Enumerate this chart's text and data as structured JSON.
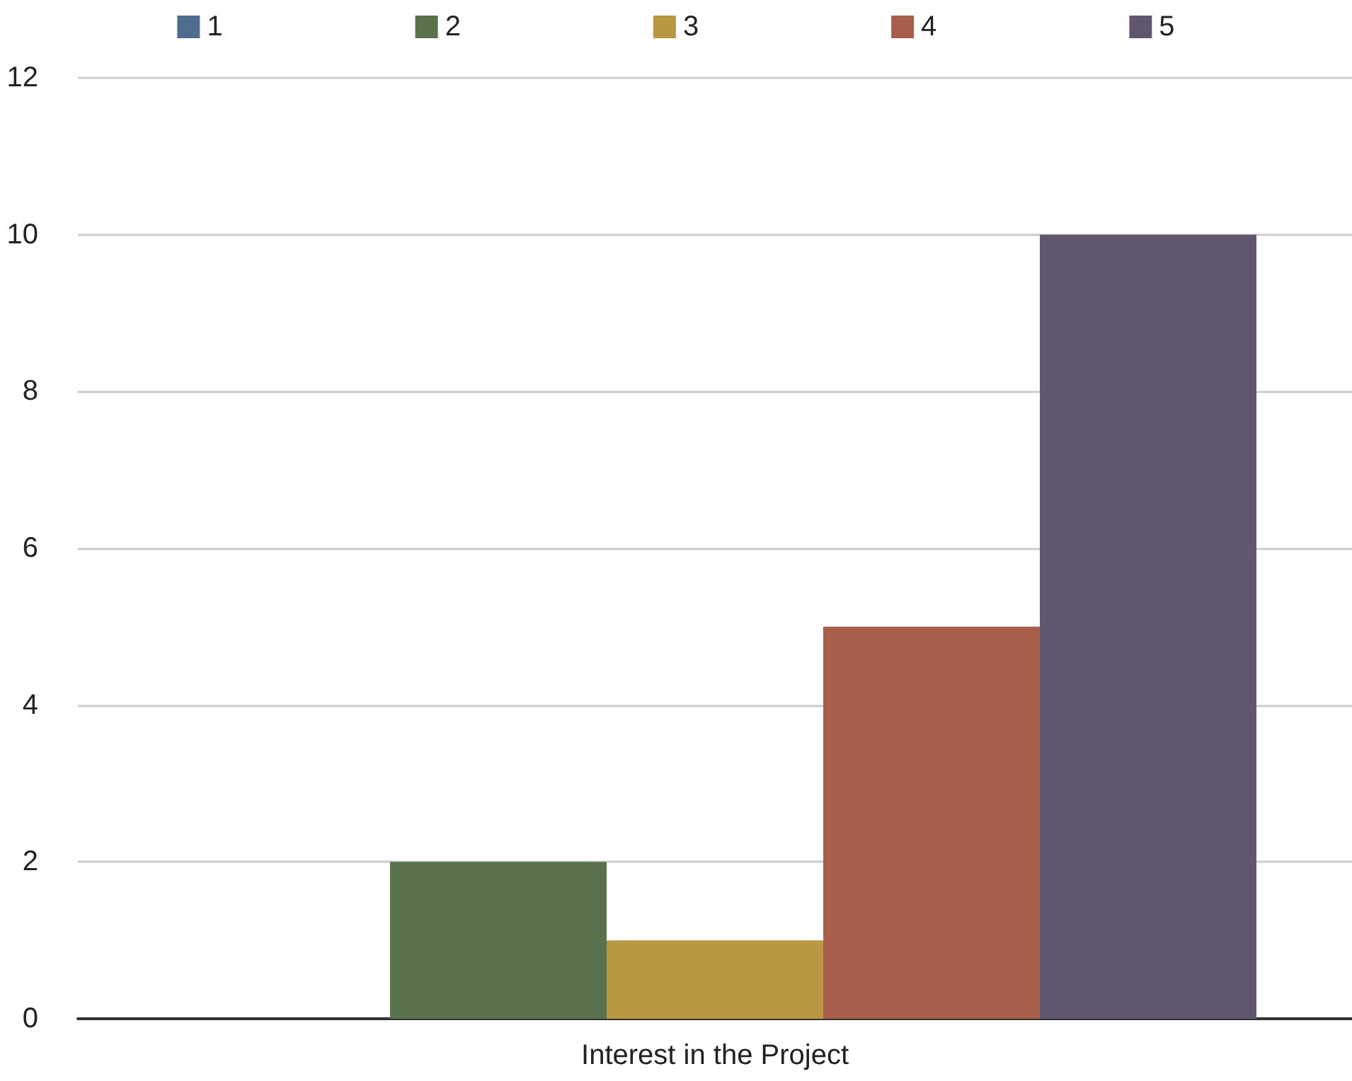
{
  "chart_data": {
    "type": "bar",
    "categories": [
      "Interest in the Project"
    ],
    "series": [
      {
        "name": "1",
        "color": "#4f6d8f",
        "values": [
          0
        ]
      },
      {
        "name": "2",
        "color": "#5a714d",
        "values": [
          2
        ]
      },
      {
        "name": "3",
        "color": "#b99844",
        "values": [
          1
        ]
      },
      {
        "name": "4",
        "color": "#a95d4b",
        "values": [
          5
        ]
      },
      {
        "name": "5",
        "color": "#61566f",
        "values": [
          10
        ]
      }
    ],
    "ylim": [
      0,
      12
    ],
    "yticks": [
      0,
      2,
      4,
      6,
      8,
      10,
      12
    ],
    "grid": "y",
    "legend": "top"
  }
}
